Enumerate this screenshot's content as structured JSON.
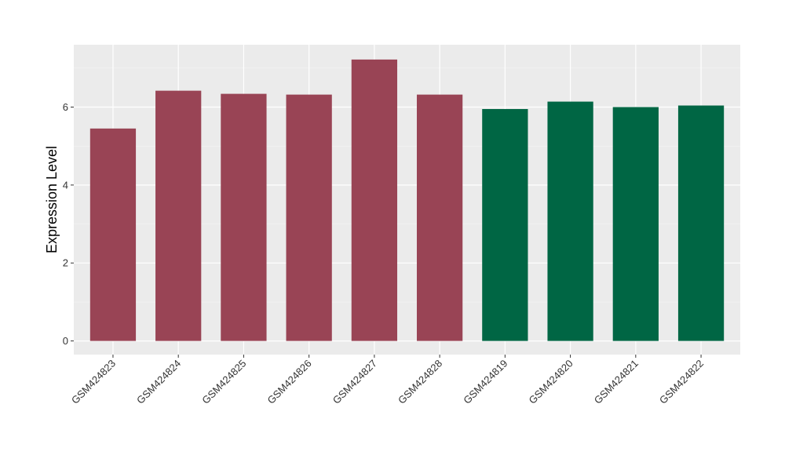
{
  "chart_data": {
    "type": "bar",
    "title": "",
    "xlabel": "",
    "ylabel": "Expression Level",
    "ylim": [
      -0.35,
      7.6
    ],
    "y_ticks": [
      0,
      2,
      4,
      6
    ],
    "grid": true,
    "legend": "none",
    "categories": [
      "GSM424823",
      "GSM424824",
      "GSM424825",
      "GSM424826",
      "GSM424827",
      "GSM424828",
      "GSM424819",
      "GSM424820",
      "GSM424821",
      "GSM424822"
    ],
    "values": [
      5.45,
      6.42,
      6.34,
      6.32,
      7.22,
      6.32,
      5.95,
      6.14,
      6.0,
      6.04
    ],
    "bar_colors": [
      "#994455",
      "#994455",
      "#994455",
      "#994455",
      "#994455",
      "#994455",
      "#006644",
      "#006644",
      "#006644",
      "#006644"
    ],
    "colors": {
      "panel_background": "#EBEBEB",
      "grid_major": "#FFFFFF",
      "grid_minor": "#F5F5F5",
      "tick": "#333333"
    }
  }
}
